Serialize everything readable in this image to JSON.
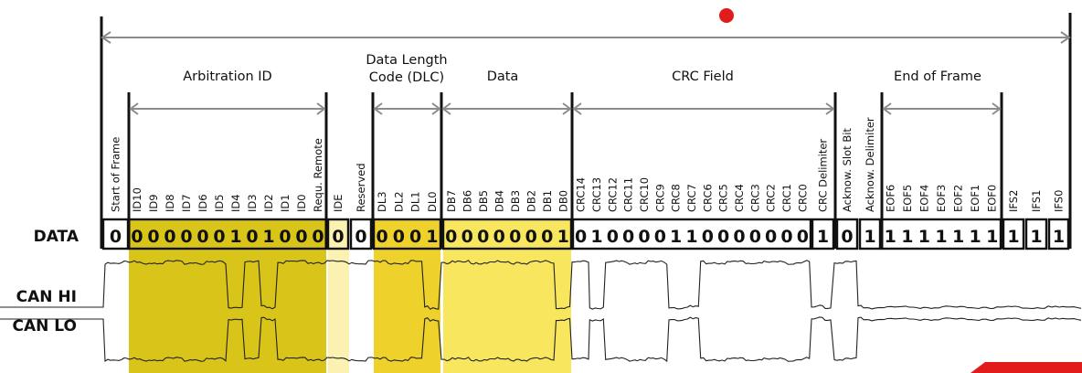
{
  "sections": [
    {
      "id": "arbitration",
      "label": "Arbitration ID"
    },
    {
      "id": "dlc",
      "label_lines": [
        "Data Length",
        "Code (DLC)"
      ]
    },
    {
      "id": "data",
      "label": "Data"
    },
    {
      "id": "crc",
      "label": "CRC Field"
    },
    {
      "id": "eof",
      "label": "End of Frame"
    }
  ],
  "fields": [
    {
      "label": "Start of Frame",
      "value": "0"
    },
    {
      "label": "ID10",
      "value": "0"
    },
    {
      "label": "ID9",
      "value": "0"
    },
    {
      "label": "ID8",
      "value": "0"
    },
    {
      "label": "ID7",
      "value": "0"
    },
    {
      "label": "ID6",
      "value": "0"
    },
    {
      "label": "ID5",
      "value": "0"
    },
    {
      "label": "ID4",
      "value": "1"
    },
    {
      "label": "ID3",
      "value": "0"
    },
    {
      "label": "ID2",
      "value": "1"
    },
    {
      "label": "ID1",
      "value": "0"
    },
    {
      "label": "ID0",
      "value": "0"
    },
    {
      "label": "Requ. Remote",
      "value": "0"
    },
    {
      "label": "IDE",
      "value": "0"
    },
    {
      "label": "Reserved",
      "value": "0"
    },
    {
      "label": "DL3",
      "value": "0"
    },
    {
      "label": "DL2",
      "value": "0"
    },
    {
      "label": "DL1",
      "value": "0"
    },
    {
      "label": "DL0",
      "value": "1"
    },
    {
      "label": "DB7",
      "value": "0"
    },
    {
      "label": "DB6",
      "value": "0"
    },
    {
      "label": "DB5",
      "value": "0"
    },
    {
      "label": "DB4",
      "value": "0"
    },
    {
      "label": "DB3",
      "value": "0"
    },
    {
      "label": "DB2",
      "value": "0"
    },
    {
      "label": "DB1",
      "value": "0"
    },
    {
      "label": "DB0",
      "value": "1"
    },
    {
      "label": "CRC14",
      "value": "0"
    },
    {
      "label": "CRC13",
      "value": "1"
    },
    {
      "label": "CRC12",
      "value": "0"
    },
    {
      "label": "CRC11",
      "value": "0"
    },
    {
      "label": "CRC10",
      "value": "0"
    },
    {
      "label": "CRC9",
      "value": "0"
    },
    {
      "label": "CRC8",
      "value": "1"
    },
    {
      "label": "CRC7",
      "value": "1"
    },
    {
      "label": "CRC6",
      "value": "0"
    },
    {
      "label": "CRC5",
      "value": "0"
    },
    {
      "label": "CRC4",
      "value": "0"
    },
    {
      "label": "CRC3",
      "value": "0"
    },
    {
      "label": "CRC2",
      "value": "0"
    },
    {
      "label": "CRC1",
      "value": "0"
    },
    {
      "label": "CRC0",
      "value": "0"
    },
    {
      "label": "CRC Delimiter",
      "value": "1"
    },
    {
      "label": "Acknow. Slot Bit",
      "value": "0"
    },
    {
      "label": "Acknow. Delimiter",
      "value": "1"
    },
    {
      "label": "EOF6",
      "value": "1"
    },
    {
      "label": "EOF5",
      "value": "1"
    },
    {
      "label": "EOF4",
      "value": "1"
    },
    {
      "label": "EOF3",
      "value": "1"
    },
    {
      "label": "EOF2",
      "value": "1"
    },
    {
      "label": "EOF1",
      "value": "1"
    },
    {
      "label": "EOF0",
      "value": "1"
    },
    {
      "label": "IFS2",
      "value": "1"
    },
    {
      "label": "IFS1",
      "value": "1"
    },
    {
      "label": "IFS0",
      "value": "1"
    }
  ],
  "row_labels": {
    "data": "DATA",
    "can_hi": "CAN HI",
    "can_lo": "CAN LO"
  },
  "colors": {
    "arbitration": "#d9c51a",
    "ide": "#fbf1b0",
    "dlc": "#eed12a",
    "data": "#f8e65e",
    "accent_dot": "#e21b1b"
  }
}
